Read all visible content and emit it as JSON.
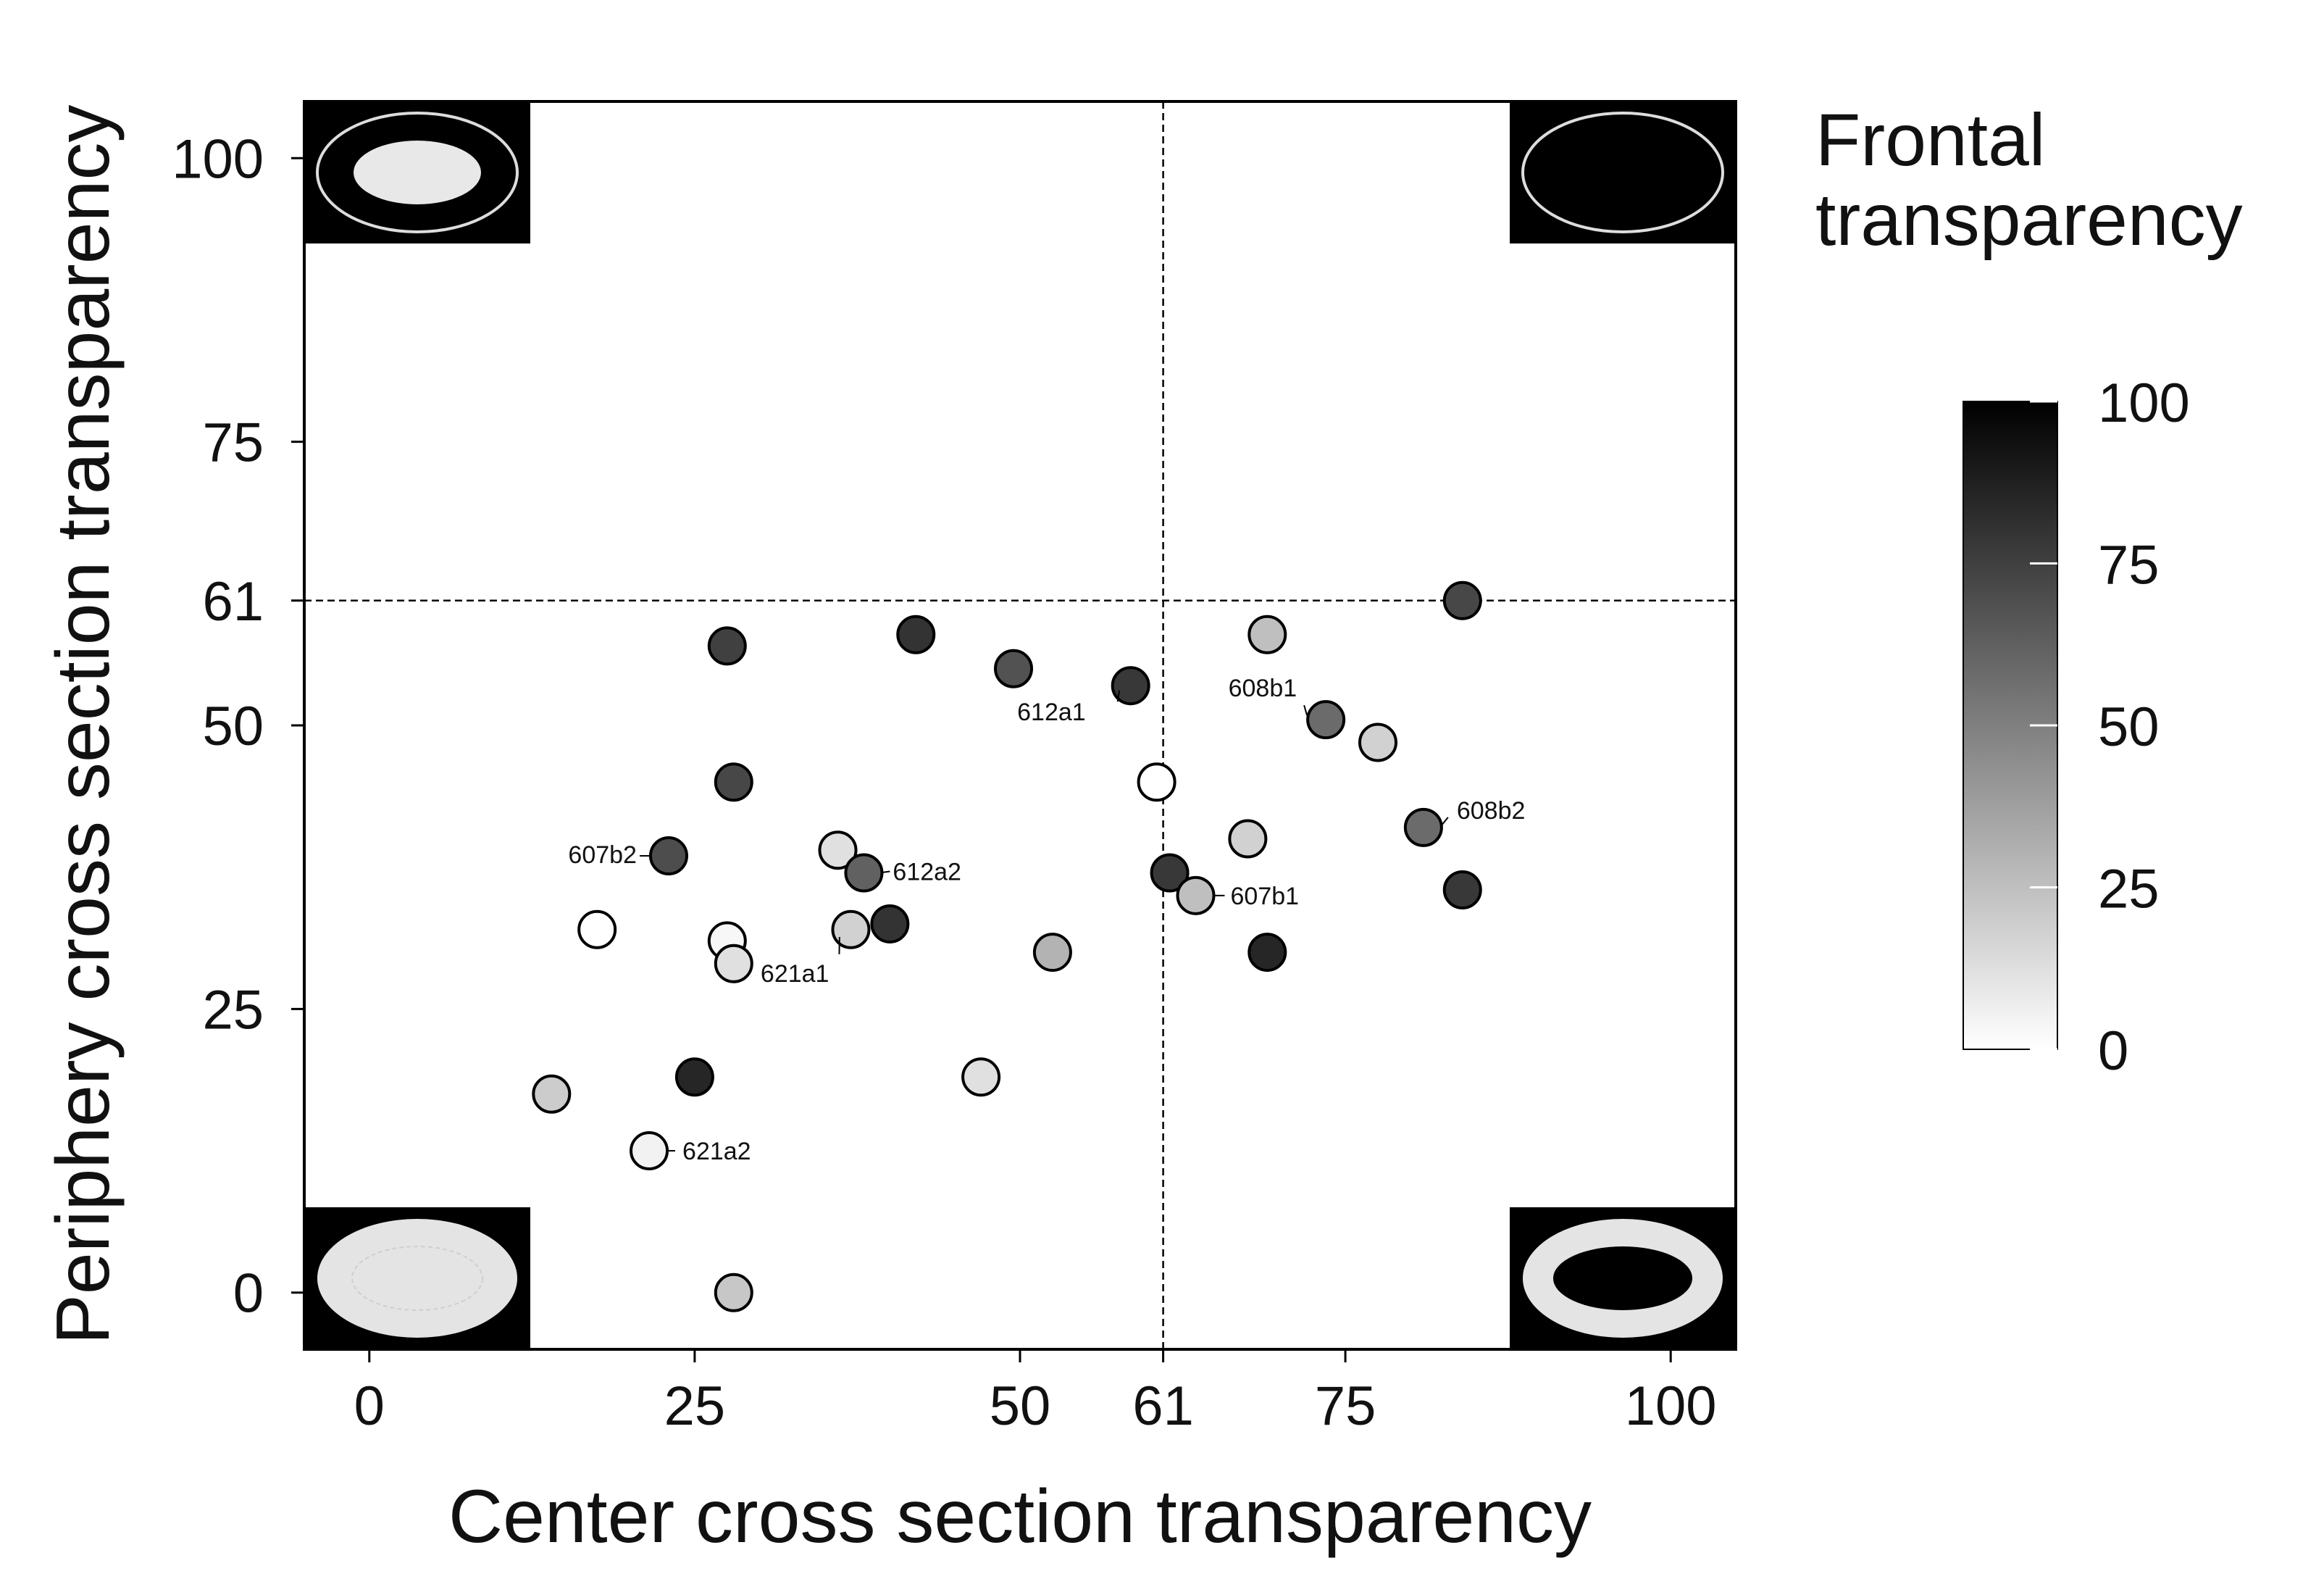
{
  "chart_data": {
    "type": "scatter",
    "xlabel": "Center cross section transparency",
    "ylabel": "Periphery cross section transparency",
    "xlim": [
      -5,
      105
    ],
    "ylim": [
      -5,
      105
    ],
    "xticks": [
      0,
      25,
      50,
      61,
      75,
      100
    ],
    "yticks": [
      0,
      25,
      50,
      61,
      75,
      100
    ],
    "threshold_x": 61,
    "threshold_y": 61,
    "grid": false,
    "colorbar": {
      "title_line1": "Frontal",
      "title_line2": "transparency",
      "range": [
        0,
        100
      ],
      "ticks": [
        0,
        25,
        50,
        75,
        100
      ],
      "color_low": "#ffffff",
      "color_high": "#000000",
      "placement": "right"
    },
    "corner_insets": [
      "top-left",
      "top-right",
      "bottom-left",
      "bottom-right"
    ],
    "points": [
      {
        "x": 27.5,
        "y": 57,
        "c": 75,
        "label": ""
      },
      {
        "x": 42,
        "y": 58,
        "c": 80,
        "label": ""
      },
      {
        "x": 49.5,
        "y": 55,
        "c": 68,
        "label": ""
      },
      {
        "x": 58.5,
        "y": 53.5,
        "c": 78,
        "label": "612a1"
      },
      {
        "x": 60.5,
        "y": 45,
        "c": 0,
        "label": ""
      },
      {
        "x": 28,
        "y": 45,
        "c": 72,
        "label": ""
      },
      {
        "x": 23,
        "y": 38.5,
        "c": 70,
        "label": "607b2"
      },
      {
        "x": 36,
        "y": 39,
        "c": 12,
        "label": ""
      },
      {
        "x": 38,
        "y": 37,
        "c": 62,
        "label": "612a2"
      },
      {
        "x": 17.5,
        "y": 32,
        "c": 0,
        "label": ""
      },
      {
        "x": 27.5,
        "y": 31,
        "c": 3,
        "label": ""
      },
      {
        "x": 28,
        "y": 29,
        "c": 12,
        "label": ""
      },
      {
        "x": 37,
        "y": 32,
        "c": 18,
        "label": "621a1"
      },
      {
        "x": 40,
        "y": 32.5,
        "c": 80,
        "label": ""
      },
      {
        "x": 52.5,
        "y": 30,
        "c": 30,
        "label": ""
      },
      {
        "x": 61.5,
        "y": 37,
        "c": 78,
        "label": ""
      },
      {
        "x": 63.5,
        "y": 35,
        "c": 25,
        "label": "607b1"
      },
      {
        "x": 67.5,
        "y": 40,
        "c": 18,
        "label": ""
      },
      {
        "x": 69,
        "y": 58,
        "c": 25,
        "label": ""
      },
      {
        "x": 73.5,
        "y": 50.5,
        "c": 58,
        "label": "608b1"
      },
      {
        "x": 77.5,
        "y": 48.5,
        "c": 18,
        "label": ""
      },
      {
        "x": 81,
        "y": 41,
        "c": 58,
        "label": "608b2"
      },
      {
        "x": 84,
        "y": 61,
        "c": 72,
        "label": ""
      },
      {
        "x": 84,
        "y": 35.5,
        "c": 78,
        "label": ""
      },
      {
        "x": 69,
        "y": 30,
        "c": 85,
        "label": ""
      },
      {
        "x": 14,
        "y": 17.5,
        "c": 20,
        "label": ""
      },
      {
        "x": 25,
        "y": 19,
        "c": 85,
        "label": ""
      },
      {
        "x": 47,
        "y": 19,
        "c": 12,
        "label": ""
      },
      {
        "x": 21.5,
        "y": 12.5,
        "c": 5,
        "label": "621a2"
      },
      {
        "x": 28,
        "y": 0,
        "c": 22,
        "label": ""
      }
    ]
  }
}
